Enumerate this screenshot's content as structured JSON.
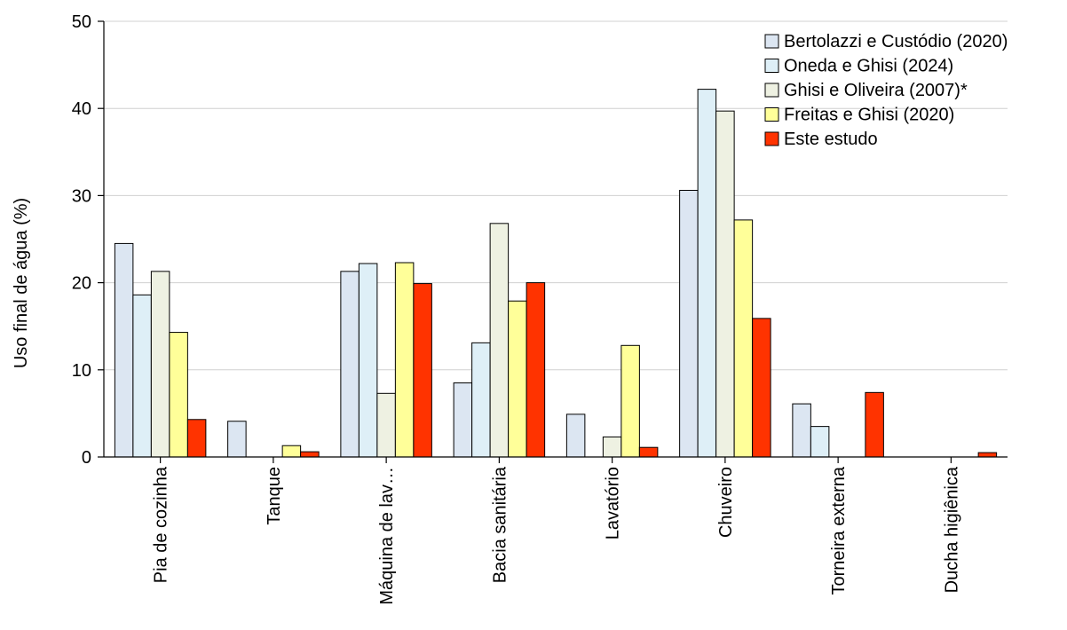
{
  "chart_data": {
    "type": "bar",
    "title": "",
    "xlabel": "",
    "ylabel": "Uso final de água (%)",
    "ylim": [
      0,
      50
    ],
    "yticks": [
      0,
      10,
      20,
      30,
      40,
      50
    ],
    "grid": true,
    "legend_position": "top-right",
    "categories": [
      "Pia de cozinha",
      "Tanque",
      "Máquina de lav…",
      "Bacia sanitária",
      "Lavatório",
      "Chuveiro",
      "Torneira externa",
      "Ducha higiênica"
    ],
    "series": [
      {
        "name": "Bertolazzi e Custódio (2020)",
        "color": "#dce6f2",
        "values": [
          24.5,
          4.1,
          21.3,
          8.5,
          4.9,
          30.6,
          6.1,
          0
        ]
      },
      {
        "name": "Oneda e Ghisi (2024)",
        "color": "#deeff7",
        "values": [
          18.6,
          0,
          22.2,
          13.1,
          0,
          42.2,
          3.5,
          0
        ]
      },
      {
        "name": "Ghisi e Oliveira (2007)*",
        "color": "#eef1e2",
        "values": [
          21.3,
          0,
          7.3,
          26.8,
          2.3,
          39.7,
          0,
          0
        ]
      },
      {
        "name": "Freitas e Ghisi (2020)",
        "color": "#ffff99",
        "values": [
          14.3,
          1.3,
          22.3,
          17.9,
          12.8,
          27.2,
          0,
          0
        ]
      },
      {
        "name": "Este estudo",
        "color": "#ff3300",
        "values": [
          4.3,
          0.6,
          19.9,
          20.0,
          1.1,
          15.9,
          7.4,
          0.5
        ]
      }
    ]
  }
}
